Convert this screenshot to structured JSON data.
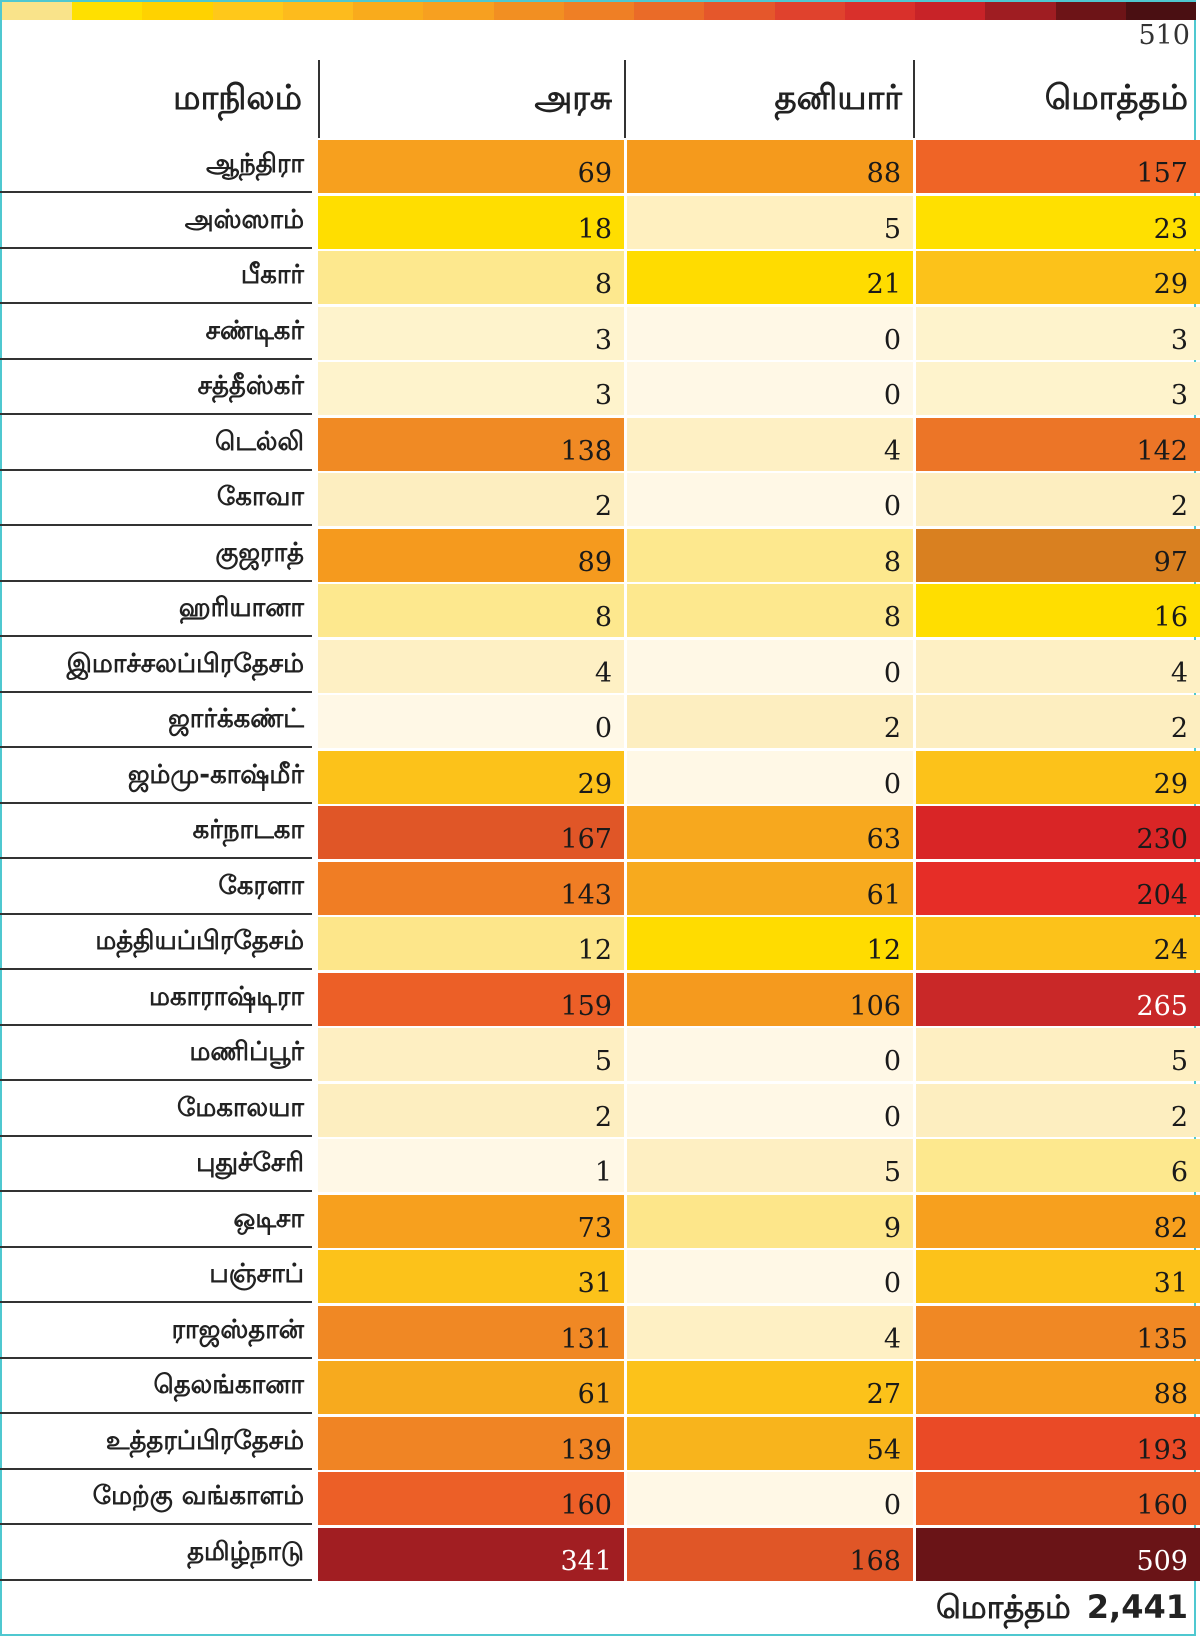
{
  "page_number": "510",
  "header": {
    "state": "மாநிலம்",
    "govt": "அரசு",
    "private": "தனியார்",
    "total": "மொத்தம்"
  },
  "footer": {
    "total_label": "மொத்தம்",
    "total_value": "2,441"
  },
  "colors": {
    "strip": [
      "#f9e38a",
      "#ffe000",
      "#ffd200",
      "#ffc81a",
      "#fdbb1d",
      "#f9ab1c",
      "#f7a020",
      "#f28f22",
      "#ef7f25",
      "#ea6b28",
      "#e5572b",
      "#e0422d",
      "#d9302b",
      "#c82328",
      "#9f1d22",
      "#6d1417",
      "#4a0f12"
    ]
  },
  "chart_data": {
    "type": "table",
    "columns": [
      "மாநிலம்",
      "அரசு",
      "தனியார்",
      "மொத்தம்"
    ],
    "rows": [
      {
        "state": "ஆந்திரா",
        "govt": 69,
        "private": 88,
        "total": 157,
        "c": [
          "#f7a01e",
          "#f59a1c",
          "#ef6426"
        ]
      },
      {
        "state": "அஸ்ஸாம்",
        "govt": 18,
        "private": 5,
        "total": 23,
        "c": [
          "#ffde00",
          "#fff0c0",
          "#ffe000"
        ]
      },
      {
        "state": "பீகார்",
        "govt": 8,
        "private": 21,
        "total": 29,
        "c": [
          "#fde88e",
          "#ffdc00",
          "#fcc21a"
        ]
      },
      {
        "state": "சண்டிகர்",
        "govt": 3,
        "private": 0,
        "total": 3,
        "c": [
          "#fef3cc",
          "#fff8e6",
          "#fef3cc"
        ]
      },
      {
        "state": "சத்தீஸ்கர்",
        "govt": 3,
        "private": 0,
        "total": 3,
        "c": [
          "#fef3cc",
          "#fff8e6",
          "#fef3cc"
        ]
      },
      {
        "state": "டெல்லி",
        "govt": 138,
        "private": 4,
        "total": 142,
        "c": [
          "#f08a24",
          "#fef0c4",
          "#ec7527"
        ]
      },
      {
        "state": "கோவா",
        "govt": 2,
        "private": 0,
        "total": 2,
        "c": [
          "#fdeec0",
          "#fff8e6",
          "#fdeec0"
        ]
      },
      {
        "state": "குஜராத்",
        "govt": 89,
        "private": 8,
        "total": 97,
        "c": [
          "#f59a1e",
          "#fde88e",
          "#d98020"
        ]
      },
      {
        "state": "ஹரியானா",
        "govt": 8,
        "private": 8,
        "total": 16,
        "c": [
          "#fde88e",
          "#fde88e",
          "#ffde00"
        ]
      },
      {
        "state": "இமாச்சலப்பிரதேசம்",
        "govt": 4,
        "private": 0,
        "total": 4,
        "c": [
          "#fef0c4",
          "#fff8e6",
          "#fef0c4"
        ]
      },
      {
        "state": "ஜார்க்கண்ட்",
        "govt": 0,
        "private": 2,
        "total": 2,
        "c": [
          "#fff8e6",
          "#fdeec0",
          "#fdeec0"
        ]
      },
      {
        "state": "ஜம்மு-காஷ்மீர்",
        "govt": 29,
        "private": 0,
        "total": 29,
        "c": [
          "#fcc21a",
          "#fff8e6",
          "#fcc21a"
        ]
      },
      {
        "state": "கர்நாடகா",
        "govt": 167,
        "private": 63,
        "total": 230,
        "c": [
          "#e05627",
          "#f7a81e",
          "#d92526"
        ]
      },
      {
        "state": "கேரளா",
        "govt": 143,
        "private": 61,
        "total": 204,
        "c": [
          "#f07d24",
          "#f7aa1e",
          "#e62d27"
        ]
      },
      {
        "state": "மத்தியப்பிரதேசம்",
        "govt": 12,
        "private": 12,
        "total": 24,
        "c": [
          "#fde68a",
          "#ffdc00",
          "#fcc21a"
        ]
      },
      {
        "state": "மகாராஷ்டிரா",
        "govt": 159,
        "private": 106,
        "total": 265,
        "c": [
          "#ec5f27",
          "#f59a1e",
          "#c92828"
        ]
      },
      {
        "state": "மணிப்பூர்",
        "govt": 5,
        "private": 0,
        "total": 5,
        "c": [
          "#feefc2",
          "#fff8e6",
          "#feefc2"
        ]
      },
      {
        "state": "மேகாலயா",
        "govt": 2,
        "private": 0,
        "total": 2,
        "c": [
          "#fdeec0",
          "#fff8e6",
          "#fdeec0"
        ]
      },
      {
        "state": "புதுச்சேரி",
        "govt": 1,
        "private": 5,
        "total": 6,
        "c": [
          "#fff8e6",
          "#feefc2",
          "#fde88e"
        ]
      },
      {
        "state": "ஒடிசா",
        "govt": 73,
        "private": 9,
        "total": 82,
        "c": [
          "#f7a01e",
          "#fde68a",
          "#f7a01e"
        ]
      },
      {
        "state": "பஞ்சாப்",
        "govt": 31,
        "private": 0,
        "total": 31,
        "c": [
          "#fcc21a",
          "#fff8e6",
          "#fcc21a"
        ]
      },
      {
        "state": "ராஜஸ்தான்",
        "govt": 131,
        "private": 4,
        "total": 135,
        "c": [
          "#f08824",
          "#fef0c4",
          "#f08824"
        ]
      },
      {
        "state": "தெலங்கானா",
        "govt": 61,
        "private": 27,
        "total": 88,
        "c": [
          "#f7aa1e",
          "#fcc21a",
          "#f7a01e"
        ]
      },
      {
        "state": "உத்தரப்பிரதேசம்",
        "govt": 139,
        "private": 54,
        "total": 193,
        "c": [
          "#f08424",
          "#f8b41c",
          "#ea4a26"
        ]
      },
      {
        "state": "மேற்கு வங்காளம்",
        "govt": 160,
        "private": 0,
        "total": 160,
        "c": [
          "#ec5f27",
          "#fff8e6",
          "#ec5f27"
        ]
      },
      {
        "state": "தமிழ்நாடு",
        "govt": 341,
        "private": 168,
        "total": 509,
        "c": [
          "#a11e22",
          "#e05627",
          "#6a1417"
        ]
      }
    ]
  }
}
